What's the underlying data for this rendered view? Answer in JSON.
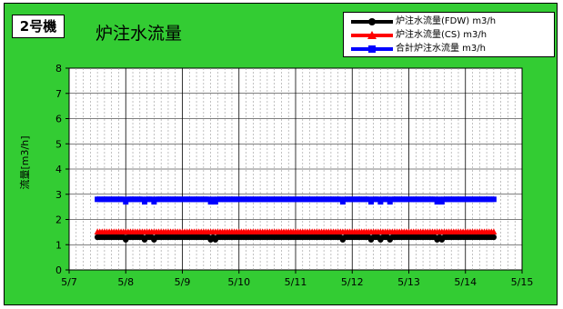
{
  "header": {
    "unit_label": "2号機",
    "title": "炉注水流量"
  },
  "legend": {
    "items": [
      {
        "label": "炉注水流量(FDW) m3/h",
        "color": "#000000",
        "marker": "circle"
      },
      {
        "label": "炉注水流量(CS) m3/h",
        "color": "#ff0000",
        "marker": "triangle"
      },
      {
        "label": "合計炉注水流量 m3/h",
        "color": "#0000ff",
        "marker": "square"
      }
    ]
  },
  "chart_data": {
    "type": "line",
    "title": "炉注水流量",
    "ylabel": "流量[m3/h]",
    "xlabel": "",
    "ylim": [
      0,
      8
    ],
    "xlim": [
      "5/7",
      "5/15"
    ],
    "x_ticks": [
      "5/7",
      "5/8",
      "5/9",
      "5/10",
      "5/11",
      "5/12",
      "5/13",
      "5/14",
      "5/15"
    ],
    "y_ticks": [
      "0",
      "1",
      "2",
      "3",
      "4",
      "5",
      "6",
      "7",
      "8"
    ],
    "grid": true,
    "legend_position": "top-right",
    "x_start": "5/7 12:00",
    "x_end": "5/14 12:00",
    "series": [
      {
        "name": "炉注水流量(FDW) m3/h",
        "color": "#000000",
        "baseline": 1.3,
        "dips": [
          {
            "x": "5/8 00:00",
            "y": 1.2
          },
          {
            "x": "5/8 08:00",
            "y": 1.2
          },
          {
            "x": "5/8 12:00",
            "y": 1.2
          },
          {
            "x": "5/9 12:00",
            "y": 1.2
          },
          {
            "x": "5/9 14:00",
            "y": 1.2
          },
          {
            "x": "5/11 20:00",
            "y": 1.2
          },
          {
            "x": "5/12 08:00",
            "y": 1.2
          },
          {
            "x": "5/12 12:00",
            "y": 1.2
          },
          {
            "x": "5/12 16:00",
            "y": 1.2
          },
          {
            "x": "5/13 12:00",
            "y": 1.2
          },
          {
            "x": "5/13 14:00",
            "y": 1.2
          }
        ]
      },
      {
        "name": "炉注水流量(CS) m3/h",
        "color": "#ff0000",
        "baseline": 1.5,
        "dips": []
      },
      {
        "name": "合計炉注水流量 m3/h",
        "color": "#0000ff",
        "baseline": 2.8,
        "dips": [
          {
            "x": "5/8 00:00",
            "y": 2.7
          },
          {
            "x": "5/8 08:00",
            "y": 2.7
          },
          {
            "x": "5/8 12:00",
            "y": 2.7
          },
          {
            "x": "5/9 12:00",
            "y": 2.7
          },
          {
            "x": "5/9 14:00",
            "y": 2.7
          },
          {
            "x": "5/11 20:00",
            "y": 2.7
          },
          {
            "x": "5/12 08:00",
            "y": 2.7
          },
          {
            "x": "5/12 12:00",
            "y": 2.7
          },
          {
            "x": "5/12 16:00",
            "y": 2.7
          },
          {
            "x": "5/13 12:00",
            "y": 2.7
          },
          {
            "x": "5/13 14:00",
            "y": 2.7
          }
        ]
      }
    ]
  }
}
